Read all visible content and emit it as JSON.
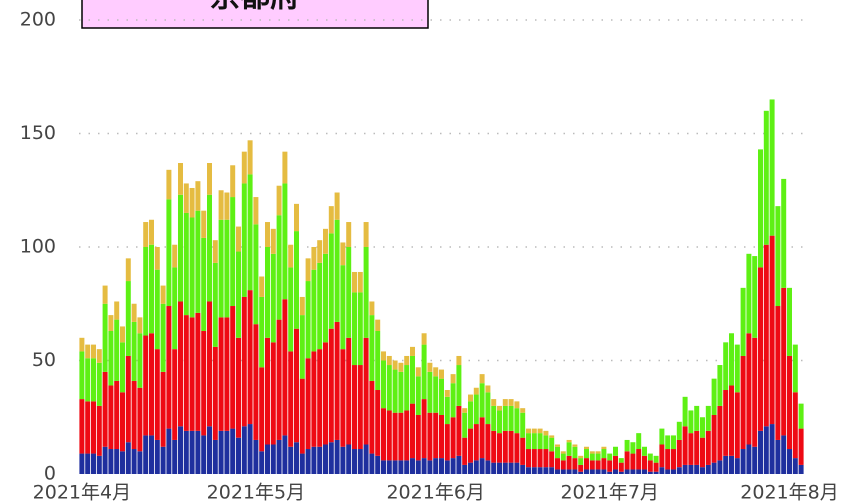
{
  "chart_data": {
    "type": "stacked_bar",
    "title": "京都府",
    "categories": [
      "2021年4月",
      null,
      null,
      null,
      null,
      null,
      null,
      null,
      null,
      null,
      null,
      null,
      null,
      null,
      null,
      null,
      null,
      null,
      null,
      null,
      null,
      null,
      null,
      null,
      null,
      null,
      null,
      null,
      null,
      null,
      "2021年5月",
      null,
      null,
      null,
      null,
      null,
      null,
      null,
      null,
      null,
      null,
      null,
      null,
      null,
      null,
      null,
      null,
      null,
      null,
      null,
      null,
      null,
      null,
      null,
      null,
      null,
      null,
      null,
      null,
      null,
      null,
      "2021年6月",
      null,
      null,
      null,
      null,
      null,
      null,
      null,
      null,
      null,
      null,
      null,
      null,
      null,
      null,
      null,
      null,
      null,
      null,
      null,
      null,
      null,
      null,
      null,
      null,
      null,
      null,
      null,
      null,
      null,
      "2021年7月",
      null,
      null,
      null,
      null,
      null,
      null,
      null,
      null,
      null,
      null,
      null,
      null,
      null,
      null,
      null,
      null,
      null,
      null,
      null,
      null,
      null,
      null,
      null,
      null,
      null,
      null,
      null,
      null,
      null,
      null,
      "2021年8月",
      null,
      null
    ],
    "series": [
      {
        "color": "#1f2f9e",
        "values": [
          9,
          9,
          9,
          8,
          12,
          11,
          11,
          10,
          14,
          11,
          10,
          17,
          17,
          15,
          12,
          20,
          15,
          21,
          19,
          19,
          19,
          17,
          21,
          15,
          19,
          19,
          20,
          16,
          21,
          22,
          15,
          10,
          13,
          13,
          15,
          17,
          12,
          14,
          9,
          11,
          12,
          12,
          13,
          14,
          15,
          12,
          13,
          11,
          11,
          13,
          9,
          8,
          6,
          6,
          6,
          6,
          6,
          7,
          6,
          7,
          6,
          7,
          7,
          6,
          7,
          8,
          4,
          5,
          6,
          7,
          6,
          5,
          5,
          5,
          5,
          5,
          4,
          3,
          3,
          3,
          3,
          3,
          2,
          2,
          2,
          2,
          1,
          2,
          2,
          2,
          2,
          1,
          2,
          1,
          2,
          2,
          2,
          2,
          1,
          1,
          3,
          2,
          2,
          3,
          4,
          4,
          4,
          3,
          4,
          5,
          6,
          8,
          8,
          7,
          11,
          13,
          12,
          19,
          21,
          22,
          15,
          17,
          11,
          7,
          4
        ]
      },
      {
        "color": "#ee0a14",
        "values": [
          24,
          23,
          23,
          22,
          33,
          28,
          30,
          26,
          38,
          30,
          28,
          44,
          45,
          40,
          33,
          54,
          40,
          55,
          51,
          50,
          52,
          46,
          55,
          41,
          50,
          50,
          54,
          44,
          57,
          59,
          51,
          37,
          47,
          45,
          53,
          60,
          42,
          50,
          33,
          40,
          42,
          43,
          45,
          50,
          52,
          43,
          47,
          37,
          37,
          47,
          32,
          29,
          23,
          22,
          21,
          21,
          22,
          24,
          20,
          26,
          21,
          20,
          19,
          16,
          18,
          22,
          12,
          15,
          16,
          18,
          16,
          14,
          13,
          14,
          14,
          13,
          12,
          8,
          8,
          8,
          8,
          7,
          5,
          4,
          6,
          5,
          3,
          5,
          4,
          4,
          5,
          5,
          6,
          4,
          8,
          7,
          9,
          6,
          5,
          4,
          10,
          9,
          9,
          12,
          17,
          14,
          15,
          13,
          15,
          21,
          24,
          29,
          31,
          29,
          41,
          49,
          48,
          72,
          80,
          83,
          59,
          65,
          41,
          29,
          16
        ]
      },
      {
        "color": "#5ef014",
        "values": [
          21,
          19,
          19,
          19,
          30,
          24,
          27,
          22,
          33,
          26,
          24,
          39,
          39,
          35,
          30,
          47,
          36,
          47,
          45,
          44,
          45,
          41,
          47,
          37,
          43,
          43,
          48,
          38,
          50,
          51,
          44,
          31,
          40,
          39,
          46,
          51,
          37,
          43,
          28,
          34,
          36,
          38,
          39,
          42,
          45,
          37,
          40,
          32,
          32,
          40,
          29,
          26,
          21,
          20,
          19,
          18,
          20,
          21,
          17,
          24,
          18,
          16,
          16,
          12,
          15,
          18,
          11,
          12,
          13,
          15,
          14,
          11,
          10,
          11,
          11,
          11,
          11,
          7,
          7,
          7,
          6,
          6,
          5,
          3,
          6,
          5,
          3,
          4,
          3,
          3,
          4,
          3,
          4,
          2,
          5,
          5,
          7,
          4,
          3,
          3,
          7,
          6,
          6,
          8,
          13,
          10,
          11,
          9,
          11,
          16,
          18,
          21,
          23,
          21,
          30,
          35,
          36,
          52,
          59,
          60,
          44,
          48,
          30,
          21,
          11
        ]
      },
      {
        "color": "#e5bc41",
        "values": [
          6,
          6,
          6,
          6,
          8,
          7,
          8,
          7,
          10,
          8,
          7,
          11,
          11,
          10,
          8,
          13,
          10,
          14,
          13,
          13,
          13,
          12,
          14,
          10,
          13,
          12,
          14,
          11,
          14,
          15,
          12,
          9,
          11,
          11,
          13,
          14,
          10,
          12,
          8,
          10,
          10,
          10,
          11,
          12,
          12,
          10,
          11,
          9,
          9,
          11,
          6,
          5,
          4,
          4,
          4,
          4,
          4,
          4,
          4,
          5,
          4,
          4,
          4,
          3,
          4,
          4,
          2,
          3,
          3,
          4,
          3,
          3,
          2,
          3,
          3,
          3,
          2,
          2,
          2,
          2,
          2,
          1,
          1,
          1,
          1,
          1,
          1,
          1,
          1,
          1,
          1,
          0,
          0,
          0,
          0,
          0,
          0,
          0,
          0,
          0,
          0,
          0,
          0,
          0,
          0,
          0,
          0,
          0,
          0,
          0,
          0,
          0,
          0,
          0,
          0,
          0,
          0,
          0,
          0,
          0,
          0,
          0,
          0,
          0,
          0
        ]
      }
    ],
    "ylim": [
      0,
      200
    ],
    "yticks": [
      0,
      50,
      100,
      150,
      200
    ],
    "grid": true
  }
}
